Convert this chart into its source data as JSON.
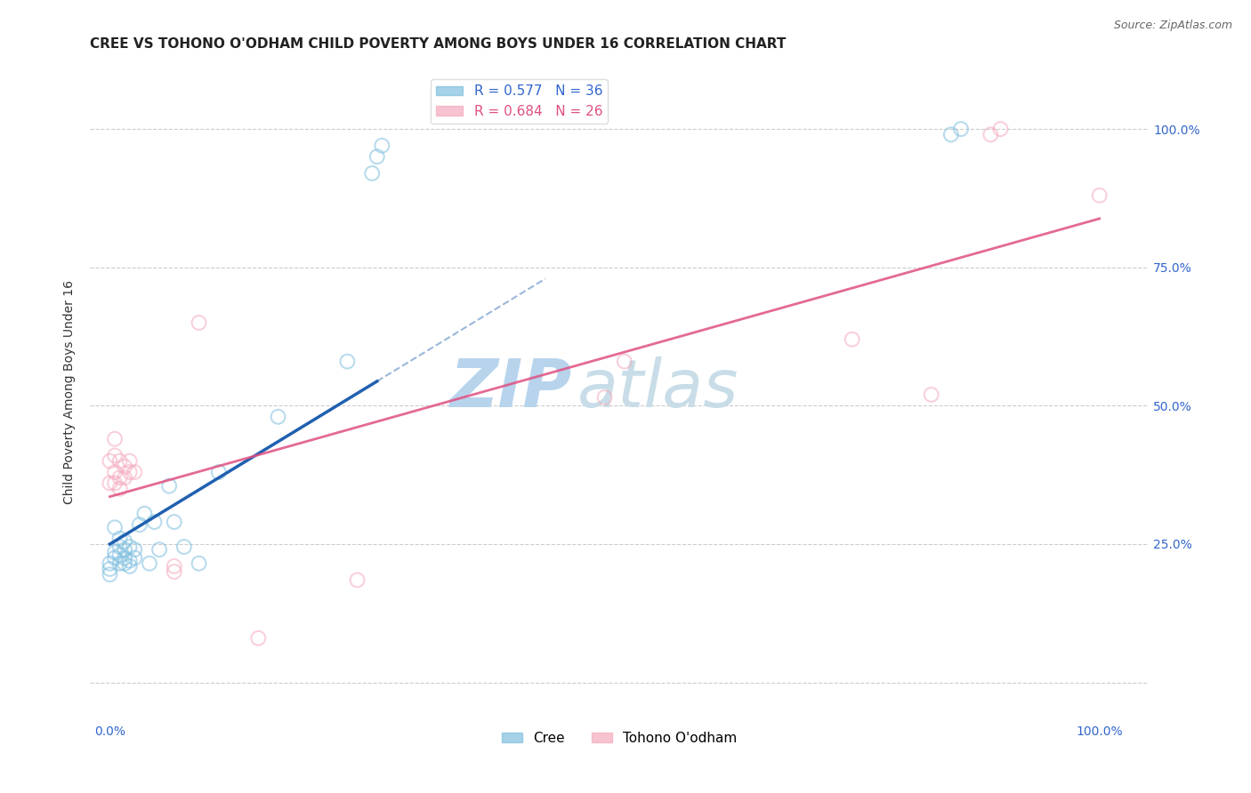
{
  "title": "CREE VS TOHONO O'ODHAM CHILD POVERTY AMONG BOYS UNDER 16 CORRELATION CHART",
  "source": "Source: ZipAtlas.com",
  "ylabel": "Child Poverty Among Boys Under 16",
  "watermark_zip": "ZIP",
  "watermark_atlas": "atlas",
  "legend_cree": "R = 0.577   N = 36",
  "legend_tohono": "R = 0.684   N = 26",
  "cree_color": "#7fbfdf",
  "tohono_color": "#f4aabc",
  "cree_line_color": "#2060b0",
  "tohono_line_color": "#e05080",
  "cree_scatter": [
    [
      0.0,
      0.195
    ],
    [
      0.0,
      0.205
    ],
    [
      0.0,
      0.215
    ],
    [
      0.005,
      0.225
    ],
    [
      0.005,
      0.235
    ],
    [
      0.005,
      0.28
    ],
    [
      0.01,
      0.215
    ],
    [
      0.01,
      0.23
    ],
    [
      0.01,
      0.245
    ],
    [
      0.01,
      0.26
    ],
    [
      0.015,
      0.215
    ],
    [
      0.015,
      0.225
    ],
    [
      0.015,
      0.24
    ],
    [
      0.015,
      0.255
    ],
    [
      0.02,
      0.21
    ],
    [
      0.02,
      0.22
    ],
    [
      0.02,
      0.245
    ],
    [
      0.025,
      0.225
    ],
    [
      0.025,
      0.24
    ],
    [
      0.03,
      0.285
    ],
    [
      0.035,
      0.305
    ],
    [
      0.04,
      0.215
    ],
    [
      0.045,
      0.29
    ],
    [
      0.05,
      0.24
    ],
    [
      0.06,
      0.355
    ],
    [
      0.065,
      0.29
    ],
    [
      0.075,
      0.245
    ],
    [
      0.09,
      0.215
    ],
    [
      0.11,
      0.38
    ],
    [
      0.17,
      0.48
    ],
    [
      0.24,
      0.58
    ],
    [
      0.265,
      0.92
    ],
    [
      0.27,
      0.95
    ],
    [
      0.275,
      0.97
    ],
    [
      0.85,
      0.99
    ],
    [
      0.86,
      1.0
    ]
  ],
  "tohono_scatter": [
    [
      0.0,
      0.36
    ],
    [
      0.0,
      0.4
    ],
    [
      0.005,
      0.36
    ],
    [
      0.005,
      0.38
    ],
    [
      0.005,
      0.41
    ],
    [
      0.005,
      0.44
    ],
    [
      0.01,
      0.35
    ],
    [
      0.01,
      0.37
    ],
    [
      0.01,
      0.4
    ],
    [
      0.015,
      0.37
    ],
    [
      0.015,
      0.39
    ],
    [
      0.02,
      0.38
    ],
    [
      0.02,
      0.4
    ],
    [
      0.025,
      0.38
    ],
    [
      0.065,
      0.2
    ],
    [
      0.065,
      0.21
    ],
    [
      0.09,
      0.65
    ],
    [
      0.15,
      0.08
    ],
    [
      0.25,
      0.185
    ],
    [
      0.5,
      0.515
    ],
    [
      0.52,
      0.58
    ],
    [
      0.75,
      0.62
    ],
    [
      0.83,
      0.52
    ],
    [
      0.89,
      0.99
    ],
    [
      0.9,
      1.0
    ],
    [
      1.0,
      0.88
    ]
  ],
  "xlim": [
    -0.02,
    1.05
  ],
  "ylim": [
    -0.07,
    1.12
  ],
  "xticks": [
    0.0,
    0.25,
    0.5,
    0.75,
    1.0
  ],
  "xtick_labels": [
    "0.0%",
    "",
    "",
    "",
    "100.0%"
  ],
  "ytick_positions": [
    0.0,
    0.25,
    0.5,
    0.75,
    1.0
  ],
  "ytick_labels_right": [
    "",
    "25.0%",
    "50.0%",
    "75.0%",
    "100.0%"
  ],
  "marker_size": 130,
  "marker_lw": 1.5,
  "marker_alpha": 0.55,
  "bg_color": "#ffffff",
  "grid_color": "#cccccc",
  "title_fontsize": 11,
  "label_fontsize": 10,
  "tick_fontsize": 10,
  "legend_fontsize": 11,
  "source_fontsize": 9
}
